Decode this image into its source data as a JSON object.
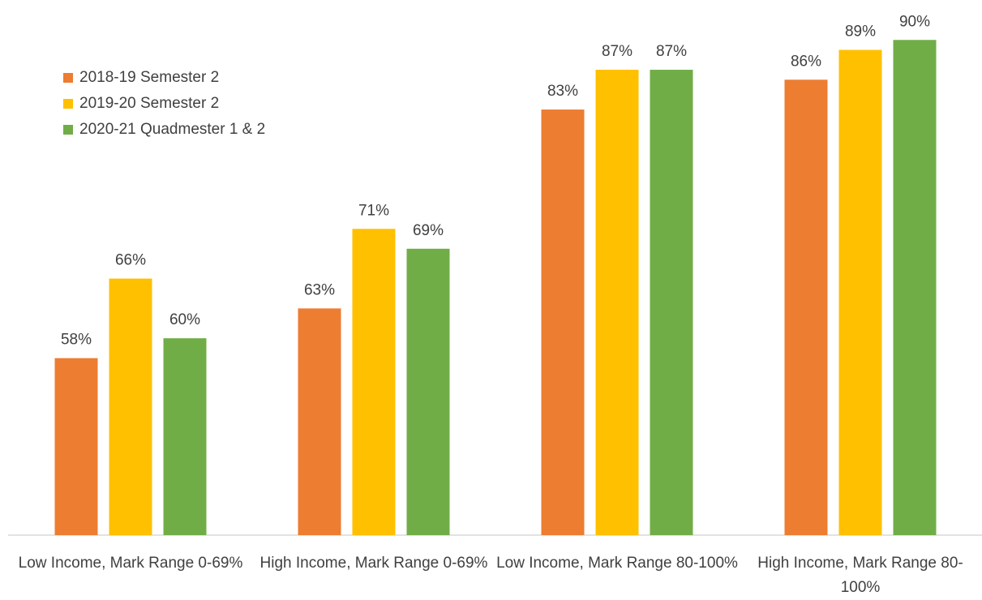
{
  "chart_data": {
    "type": "bar",
    "categories": [
      "Low Income, Mark Range 0-69%",
      "High Income, Mark Range 0-69%",
      "Low Income, Mark Range 80-100%",
      "High Income, Mark Range 80-100%"
    ],
    "series": [
      {
        "name": "2018-19 Semester 2",
        "color": "#ed7d31",
        "values": [
          58,
          63,
          83,
          86
        ],
        "value_labels": [
          "58%",
          "63%",
          "83%",
          "86%"
        ]
      },
      {
        "name": "2019-20 Semester 2",
        "color": "#ffc000",
        "values": [
          66,
          71,
          87,
          89
        ],
        "value_labels": [
          "66%",
          "71%",
          "87%",
          "89%"
        ]
      },
      {
        "name": "2020-21 Quadmester 1 & 2",
        "color": "#70ad47",
        "values": [
          60,
          69,
          87,
          90
        ],
        "value_labels": [
          "60%",
          "69%",
          "87%",
          "90%"
        ]
      }
    ],
    "ylim": [
      40.2,
      91
    ],
    "legend": "upper left"
  }
}
